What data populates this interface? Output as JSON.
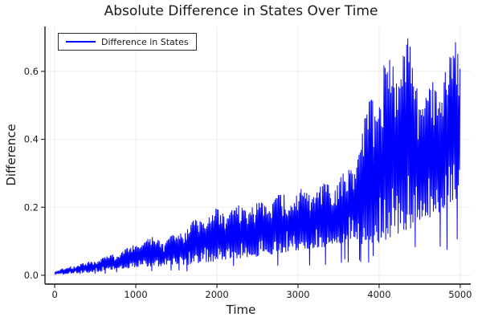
{
  "figure": {
    "title": "Absolute Difference in States Over Time",
    "x_axis_label": "Time",
    "y_axis_label": "Difference",
    "legend": {
      "label": "Difference in States"
    },
    "colors": {
      "line": "#0000ff",
      "axis": "#2f2f2f",
      "grid": "#ebebeb",
      "text": "#1a1a1a",
      "background": "#ffffff"
    }
  },
  "chart_data": {
    "type": "line",
    "title": "Absolute Difference in States Over Time",
    "xlabel": "Time",
    "ylabel": "Difference",
    "series": [
      {
        "name": "Difference in States",
        "color": "#0000ff"
      }
    ],
    "legend_position": "top-left",
    "grid": true,
    "x_ticks": [
      0,
      1000,
      2000,
      3000,
      4000,
      5000
    ],
    "x_tick_labels": [
      "0",
      "1000",
      "2000",
      "3000",
      "4000",
      "5000"
    ],
    "y_ticks": [
      0.0,
      0.2,
      0.4,
      0.6
    ],
    "y_tick_labels": [
      "0.0",
      "0.2",
      "0.4",
      "0.6"
    ],
    "xlim": [
      -120,
      5130
    ],
    "ylim": [
      -0.026,
      0.732
    ],
    "x_data_range": [
      0,
      5000
    ],
    "y_data_range": [
      0.0,
      0.71
    ],
    "description": "Dense high-frequency oscillation; absolute difference between two diverging trajectories. Amplitude grows slowly from ~0.01 at t=0 to ~0.3 by t=3700, then erupts after t~3800 with spikes reaching ~0.70 near t=4300 and t=4950, a lull (~0.55 peaks) near t=4500-4650, and lows rising to ~0.2 by t=5000.",
    "envelope_points_t_low_high": [
      [
        0,
        0.002,
        0.012
      ],
      [
        150,
        0.004,
        0.024
      ],
      [
        300,
        0.006,
        0.034
      ],
      [
        500,
        0.009,
        0.046
      ],
      [
        700,
        0.015,
        0.062
      ],
      [
        900,
        0.02,
        0.082
      ],
      [
        1050,
        0.025,
        0.1
      ],
      [
        1200,
        0.022,
        0.115
      ],
      [
        1350,
        0.028,
        0.11
      ],
      [
        1500,
        0.032,
        0.128
      ],
      [
        1650,
        0.03,
        0.155
      ],
      [
        1800,
        0.035,
        0.17
      ],
      [
        1950,
        0.04,
        0.195
      ],
      [
        2100,
        0.045,
        0.2
      ],
      [
        2250,
        0.05,
        0.205
      ],
      [
        2400,
        0.05,
        0.215
      ],
      [
        2550,
        0.058,
        0.222
      ],
      [
        2700,
        0.062,
        0.235
      ],
      [
        2850,
        0.068,
        0.245
      ],
      [
        3000,
        0.072,
        0.252
      ],
      [
        3150,
        0.078,
        0.262
      ],
      [
        3300,
        0.082,
        0.272
      ],
      [
        3450,
        0.09,
        0.285
      ],
      [
        3600,
        0.098,
        0.315
      ],
      [
        3700,
        0.1,
        0.345
      ],
      [
        3780,
        0.092,
        0.43
      ],
      [
        3860,
        0.085,
        0.51
      ],
      [
        3950,
        0.09,
        0.585
      ],
      [
        4050,
        0.1,
        0.635
      ],
      [
        4150,
        0.105,
        0.665
      ],
      [
        4250,
        0.12,
        0.69
      ],
      [
        4350,
        0.13,
        0.705
      ],
      [
        4450,
        0.15,
        0.625
      ],
      [
        4550,
        0.17,
        0.545
      ],
      [
        4650,
        0.165,
        0.565
      ],
      [
        4750,
        0.185,
        0.625
      ],
      [
        4850,
        0.21,
        0.685
      ],
      [
        4950,
        0.22,
        0.71
      ],
      [
        5000,
        0.23,
        0.672
      ]
    ],
    "oscillation": {
      "sample_step": 7,
      "seed": 12345,
      "beat_period": 530,
      "deep_dip_probability": 0.07
    }
  }
}
